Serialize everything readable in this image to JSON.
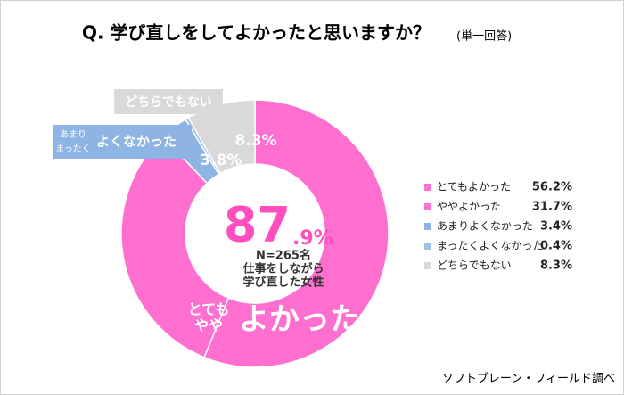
{
  "chart_data": {
    "type": "pie",
    "title": "Q.  学び直しをしてよかったと思いますか？",
    "subtitle": "(単一回答)",
    "categories": [
      "とてもよかった",
      "ややよかった",
      "あまりよくなかった",
      "まったくよくなかった",
      "どちらでもない"
    ],
    "values": [
      56.2,
      31.7,
      3.4,
      0.4,
      8.3
    ],
    "value_labels": [
      "56.2%",
      "31.7%",
      "3.4%",
      "0.4%",
      "8.3%"
    ],
    "colors": [
      "#ff6fcf",
      "#ff6fcf",
      "#8eb4e3",
      "#9dc3e6",
      "#d9d9d9"
    ],
    "groups": [
      {
        "lines": [
          "とても",
          "やや"
        ],
        "text": "よかった",
        "value": 87.9,
        "value_label_int": "87",
        "value_label_dec": ".9%",
        "color": "#ff6fcf"
      },
      {
        "lines": [
          "あまり",
          "まったく"
        ],
        "text": "よくなかった",
        "value": 3.8,
        "value_label": "3.8%",
        "color": "#8eb4e3"
      },
      {
        "text": "どちらでもない",
        "value": 8.3,
        "value_label": "8.3%",
        "color": "#d9d9d9"
      }
    ],
    "center_lines": [
      "N=265名",
      "仕事をしながら",
      "学び直した女性"
    ],
    "source": "ソフトブレーン・フィールド調べ"
  }
}
